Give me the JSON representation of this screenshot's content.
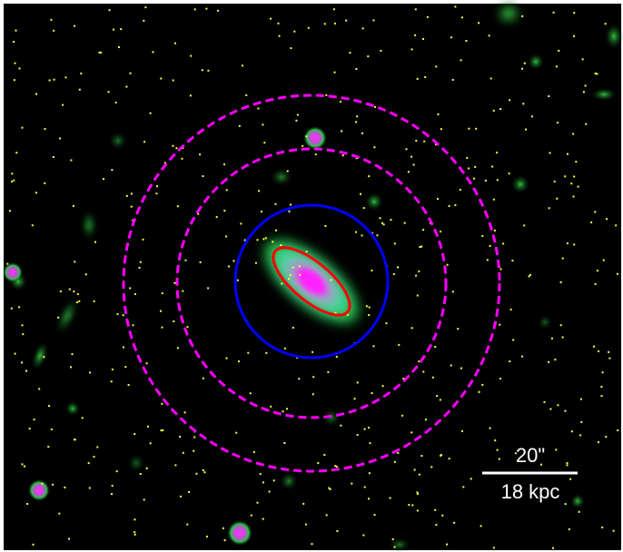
{
  "scale_bar": {
    "angular": "20\"",
    "physical": "18 kpc"
  }
}
